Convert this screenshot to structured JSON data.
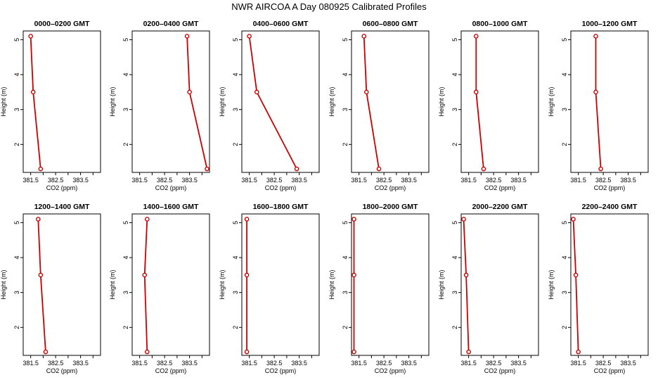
{
  "figure": {
    "title": "NWR AIRCOA A  Day 080925  Calibrated Profiles"
  },
  "chart_data": [
    {
      "type": "line",
      "title": "0000–0200 GMT",
      "xlabel": "CO2 (ppm)",
      "ylabel": "Height (m)",
      "xlim": [
        381.2,
        384.3
      ],
      "ylim": [
        1.2,
        5.25
      ],
      "xticks": [
        "381.5",
        "382.5",
        "383.5"
      ],
      "yticks": [
        "2",
        "3",
        "4",
        "5"
      ],
      "series": [
        {
          "color": "#cc0000",
          "points": [
            {
              "x": 381.5,
              "y": 5.1
            },
            {
              "x": 381.6,
              "y": 3.5
            },
            {
              "x": 381.9,
              "y": 1.3
            }
          ]
        }
      ]
    },
    {
      "type": "line",
      "title": "0200–0400 GMT",
      "xlabel": "CO2 (ppm)",
      "ylabel": "Height (m)",
      "xlim": [
        381.2,
        384.3
      ],
      "ylim": [
        1.2,
        5.25
      ],
      "xticks": [
        "381.5",
        "382.5",
        "383.5"
      ],
      "yticks": [
        "2",
        "3",
        "4",
        "5"
      ],
      "series": [
        {
          "color": "#cc0000",
          "points": [
            {
              "x": 383.4,
              "y": 5.1
            },
            {
              "x": 383.5,
              "y": 3.5
            },
            {
              "x": 384.2,
              "y": 1.3
            }
          ]
        }
      ]
    },
    {
      "type": "line",
      "title": "0400–0600 GMT",
      "xlabel": "CO2 (ppm)",
      "ylabel": "Height (m)",
      "xlim": [
        381.2,
        384.3
      ],
      "ylim": [
        1.2,
        5.25
      ],
      "xticks": [
        "381.5",
        "382.5",
        "383.5"
      ],
      "yticks": [
        "2",
        "3",
        "4",
        "5"
      ],
      "series": [
        {
          "color": "#cc0000",
          "points": [
            {
              "x": 381.5,
              "y": 5.1
            },
            {
              "x": 381.8,
              "y": 3.5
            },
            {
              "x": 383.4,
              "y": 1.3
            }
          ]
        }
      ]
    },
    {
      "type": "line",
      "title": "0600–0800 GMT",
      "xlabel": "CO2 (ppm)",
      "ylabel": "Height (m)",
      "xlim": [
        381.2,
        384.3
      ],
      "ylim": [
        1.2,
        5.25
      ],
      "xticks": [
        "381.5",
        "382.5",
        "383.5"
      ],
      "yticks": [
        "2",
        "3",
        "4",
        "5"
      ],
      "series": [
        {
          "color": "#cc0000",
          "points": [
            {
              "x": 381.7,
              "y": 5.1
            },
            {
              "x": 381.8,
              "y": 3.5
            },
            {
              "x": 382.3,
              "y": 1.3
            }
          ]
        }
      ]
    },
    {
      "type": "line",
      "title": "0800–1000 GMT",
      "xlabel": "CO2 (ppm)",
      "ylabel": "Height (m)",
      "xlim": [
        381.2,
        384.3
      ],
      "ylim": [
        1.2,
        5.25
      ],
      "xticks": [
        "381.5",
        "382.5",
        "383.5"
      ],
      "yticks": [
        "2",
        "3",
        "4",
        "5"
      ],
      "series": [
        {
          "color": "#cc0000",
          "points": [
            {
              "x": 381.8,
              "y": 5.1
            },
            {
              "x": 381.8,
              "y": 3.5
            },
            {
              "x": 382.1,
              "y": 1.3
            }
          ]
        }
      ]
    },
    {
      "type": "line",
      "title": "1000–1200 GMT",
      "xlabel": "CO2 (ppm)",
      "ylabel": "Height (m)",
      "xlim": [
        381.2,
        384.3
      ],
      "ylim": [
        1.2,
        5.25
      ],
      "xticks": [
        "381.5",
        "382.5",
        "383.5"
      ],
      "yticks": [
        "2",
        "3",
        "4",
        "5"
      ],
      "series": [
        {
          "color": "#cc0000",
          "points": [
            {
              "x": 382.2,
              "y": 5.1
            },
            {
              "x": 382.2,
              "y": 3.5
            },
            {
              "x": 382.4,
              "y": 1.3
            }
          ]
        }
      ]
    },
    {
      "type": "line",
      "title": "1200–1400 GMT",
      "xlabel": "CO2 (ppm)",
      "ylabel": "Height (m)",
      "xlim": [
        381.2,
        384.3
      ],
      "ylim": [
        1.2,
        5.25
      ],
      "xticks": [
        "381.5",
        "382.5",
        "383.5"
      ],
      "yticks": [
        "2",
        "3",
        "4",
        "5"
      ],
      "series": [
        {
          "color": "#cc0000",
          "points": [
            {
              "x": 381.8,
              "y": 5.1
            },
            {
              "x": 381.9,
              "y": 3.5
            },
            {
              "x": 382.1,
              "y": 1.3
            }
          ]
        }
      ]
    },
    {
      "type": "line",
      "title": "1400–1600 GMT",
      "xlabel": "CO2 (ppm)",
      "ylabel": "Height (m)",
      "xlim": [
        381.2,
        384.3
      ],
      "ylim": [
        1.2,
        5.25
      ],
      "xticks": [
        "381.5",
        "382.5",
        "383.5"
      ],
      "yticks": [
        "2",
        "3",
        "4",
        "5"
      ],
      "series": [
        {
          "color": "#cc0000",
          "points": [
            {
              "x": 381.8,
              "y": 5.1
            },
            {
              "x": 381.7,
              "y": 3.5
            },
            {
              "x": 381.8,
              "y": 1.3
            }
          ]
        }
      ]
    },
    {
      "type": "line",
      "title": "1600–1800 GMT",
      "xlabel": "CO2 (ppm)",
      "ylabel": "Height (m)",
      "xlim": [
        381.2,
        384.3
      ],
      "ylim": [
        1.2,
        5.25
      ],
      "xticks": [
        "381.5",
        "382.5",
        "383.5"
      ],
      "yticks": [
        "2",
        "3",
        "4",
        "5"
      ],
      "series": [
        {
          "color": "#cc0000",
          "points": [
            {
              "x": 381.4,
              "y": 5.1
            },
            {
              "x": 381.4,
              "y": 3.5
            },
            {
              "x": 381.4,
              "y": 1.3
            }
          ]
        }
      ]
    },
    {
      "type": "line",
      "title": "1800–2000 GMT",
      "xlabel": "CO2 (ppm)",
      "ylabel": "Height (m)",
      "xlim": [
        381.2,
        384.3
      ],
      "ylim": [
        1.2,
        5.25
      ],
      "xticks": [
        "381.5",
        "382.5",
        "383.5"
      ],
      "yticks": [
        "2",
        "3",
        "4",
        "5"
      ],
      "series": [
        {
          "color": "#cc0000",
          "points": [
            {
              "x": 381.3,
              "y": 5.1
            },
            {
              "x": 381.3,
              "y": 3.5
            },
            {
              "x": 381.3,
              "y": 1.3
            }
          ]
        }
      ]
    },
    {
      "type": "line",
      "title": "2000–2200 GMT",
      "xlabel": "CO2 (ppm)",
      "ylabel": "Height (m)",
      "xlim": [
        381.2,
        384.3
      ],
      "ylim": [
        1.2,
        5.25
      ],
      "xticks": [
        "381.5",
        "382.5",
        "383.5"
      ],
      "yticks": [
        "2",
        "3",
        "4",
        "5"
      ],
      "series": [
        {
          "color": "#cc0000",
          "points": [
            {
              "x": 381.3,
              "y": 5.1
            },
            {
              "x": 381.4,
              "y": 3.5
            },
            {
              "x": 381.5,
              "y": 1.3
            }
          ]
        }
      ]
    },
    {
      "type": "line",
      "title": "2200–2400 GMT",
      "xlabel": "CO2 (ppm)",
      "ylabel": "Height (m)",
      "xlim": [
        381.2,
        384.3
      ],
      "ylim": [
        1.2,
        5.25
      ],
      "xticks": [
        "381.5",
        "382.5",
        "383.5"
      ],
      "yticks": [
        "2",
        "3",
        "4",
        "5"
      ],
      "series": [
        {
          "color": "#cc0000",
          "points": [
            {
              "x": 381.3,
              "y": 5.1
            },
            {
              "x": 381.4,
              "y": 3.5
            },
            {
              "x": 381.5,
              "y": 1.3
            }
          ]
        }
      ]
    }
  ]
}
